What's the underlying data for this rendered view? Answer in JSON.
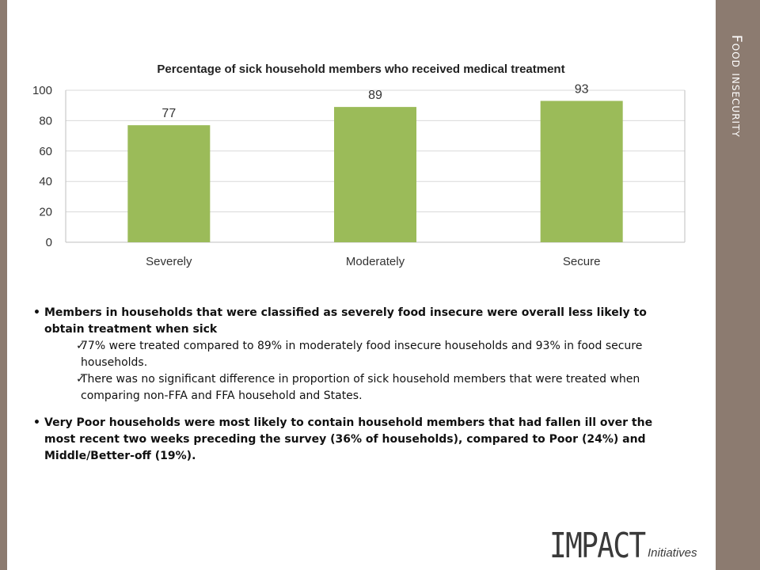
{
  "section_title": "Food insecurity",
  "chart_data": {
    "type": "bar",
    "title": "Percentage of sick household members who received medical treatment",
    "categories": [
      "Severely",
      "Moderately",
      "Secure"
    ],
    "values": [
      77,
      89,
      93
    ],
    "data_labels": [
      "77",
      "89",
      "93"
    ],
    "ylim": [
      0,
      100
    ],
    "yticks": [
      0,
      20,
      40,
      60,
      80,
      100
    ],
    "grid": true,
    "legend": "none",
    "bar_color": "#9bbb59"
  },
  "text": {
    "bullet1": "Members in households that were classified as severely food insecure were overall less likely to obtain treatment when sick",
    "check1": "77% were treated compared to 89% in moderately food insecure households and 93% in food secure households.",
    "check2": "There was no significant difference in proportion of sick household members that were treated when comparing non-FFA and FFA household and States.",
    "bullet2": "Very Poor households were most likely to contain household members that had fallen ill over the most recent two weeks preceding the survey (36% of households), compared to Poor (24%) and Middle/Better-off (19%)."
  },
  "logo": {
    "main": "IMPACT",
    "sub": "Initiatives"
  }
}
